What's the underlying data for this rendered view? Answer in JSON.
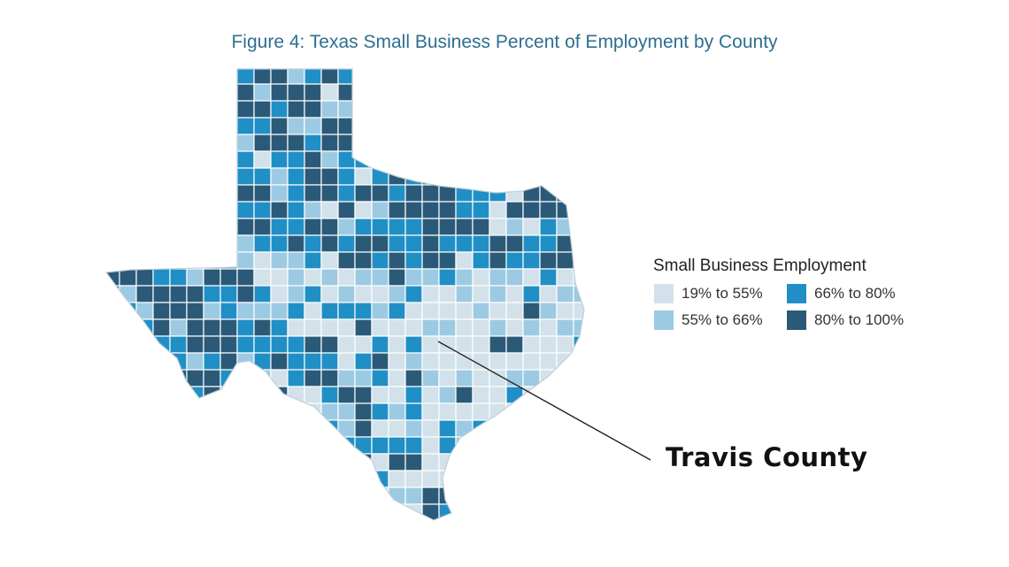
{
  "title": "Figure 4: Texas Small Business Percent of Employment by County",
  "legend": {
    "title": "Small Business Employment",
    "items": [
      {
        "label": "19% to 55%",
        "color": "#d3e1ea"
      },
      {
        "label": "66% to 80%",
        "color": "#1f8fc6"
      },
      {
        "label": "55% to 66%",
        "color": "#9ccae3"
      },
      {
        "label": "80% to 100%",
        "color": "#2b5a78"
      }
    ]
  },
  "annotation": {
    "label": "Travis County"
  },
  "colors": {
    "border": "#ffffff",
    "leader_line": "#222222"
  }
}
